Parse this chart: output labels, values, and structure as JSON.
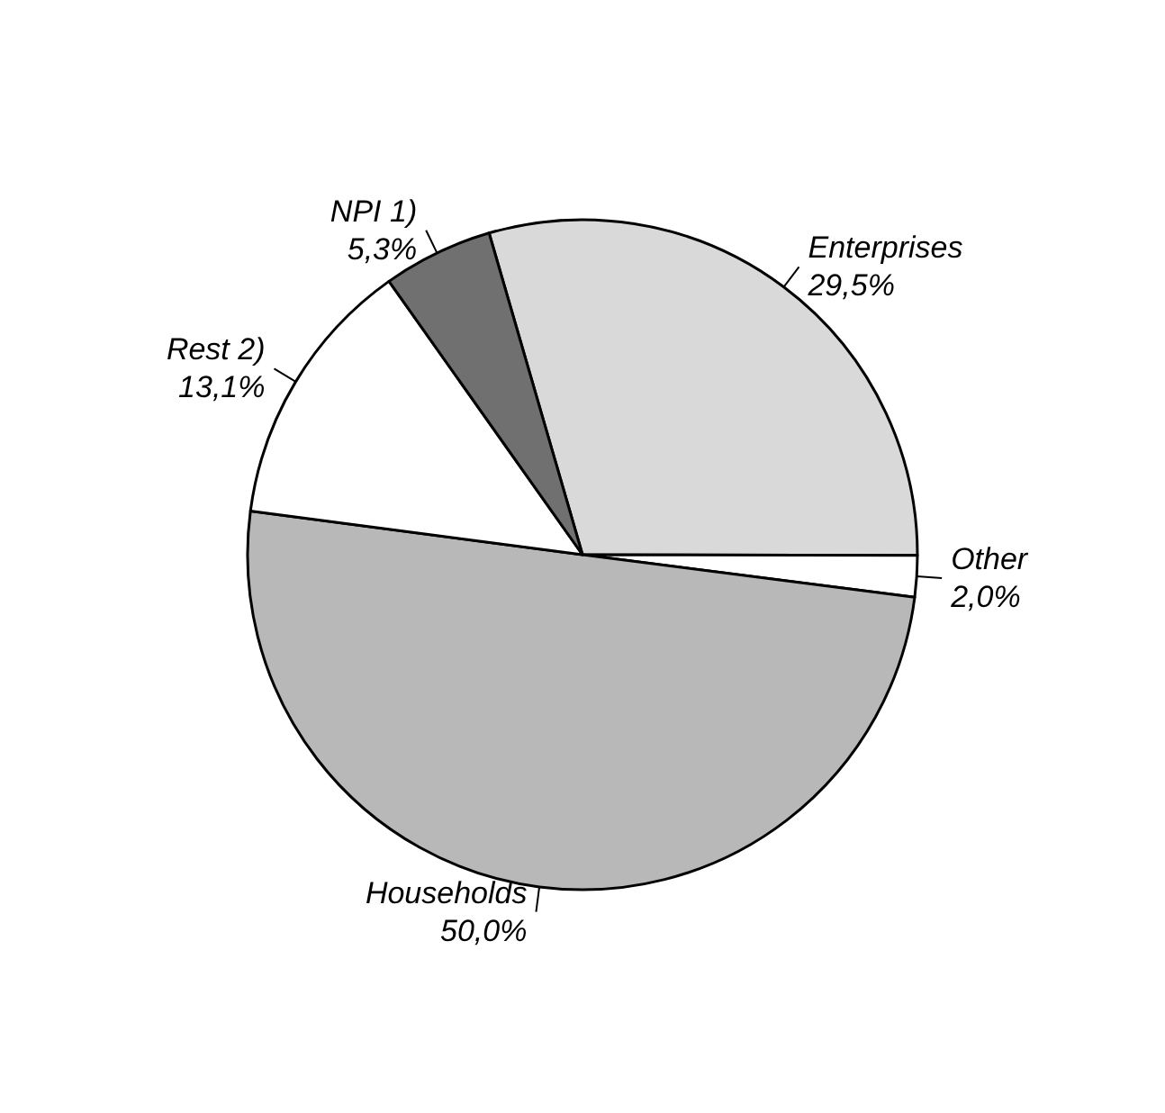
{
  "chart_data": {
    "type": "pie",
    "categories": [
      "Enterprises",
      "Other",
      "Households",
      "Rest 2)",
      "NPI 1)"
    ],
    "values": [
      29.5,
      2.0,
      50.0,
      13.1,
      5.3
    ],
    "value_labels": [
      "29,5%",
      "2,0%",
      "50,0%",
      "13,1%",
      "5,3%"
    ],
    "colors": [
      "#d9d9d9",
      "#ffffff",
      "#b8b8b8",
      "#ffffff",
      "#707070"
    ],
    "legend": false
  }
}
